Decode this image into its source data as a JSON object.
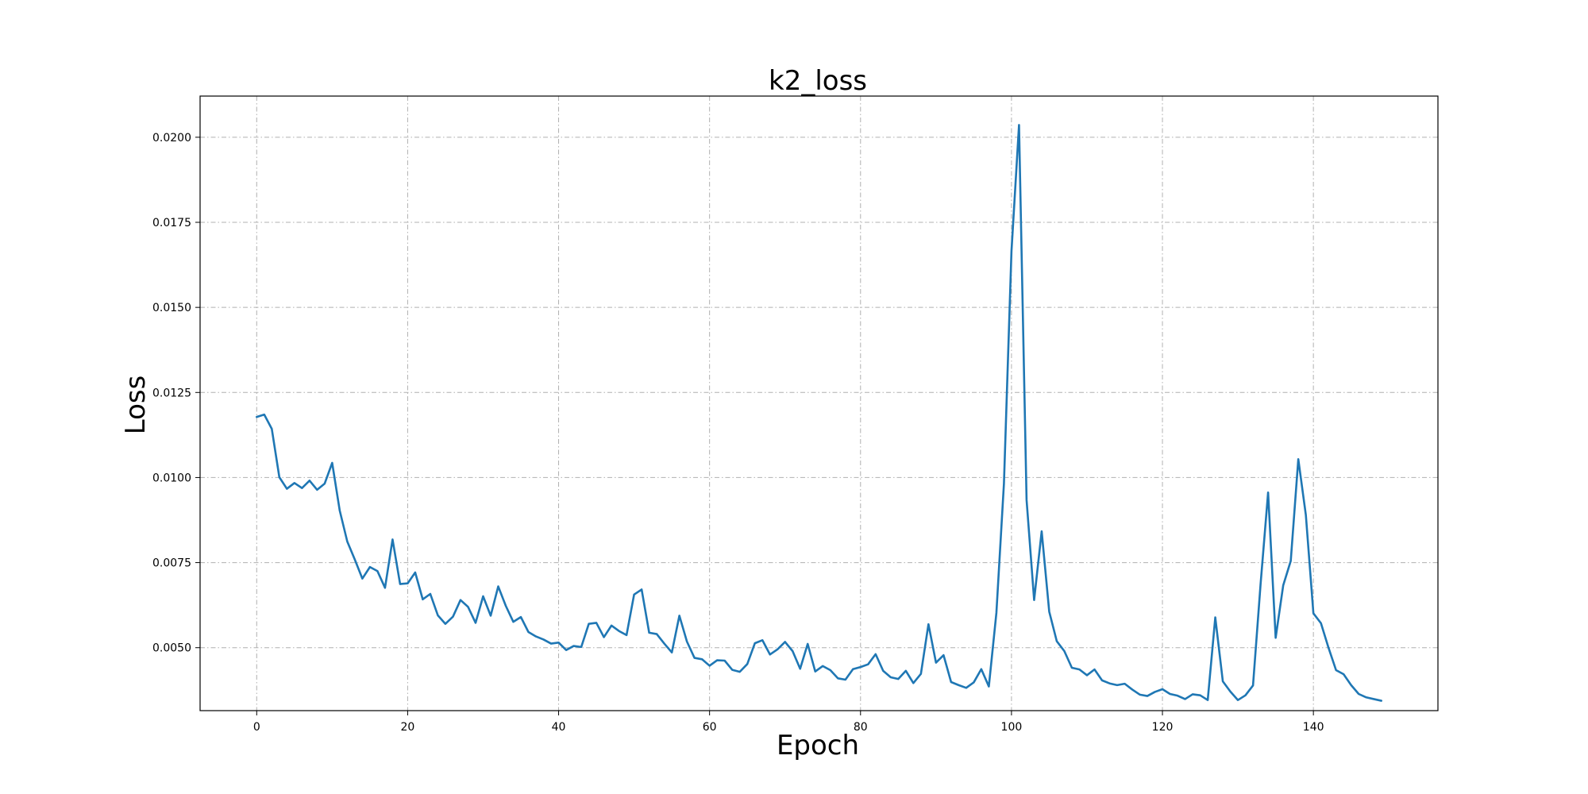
{
  "chart_data": {
    "type": "line",
    "title": "k2_loss",
    "xlabel": "Epoch",
    "ylabel": "Loss",
    "xlim": [
      -7.5,
      156.5
    ],
    "ylim": [
      0.00315,
      0.02121
    ],
    "grid": true,
    "x_ticks": [
      0,
      20,
      40,
      60,
      80,
      100,
      120,
      140
    ],
    "y_ticks": [
      0.005,
      0.0075,
      0.01,
      0.0125,
      0.015,
      0.0175,
      0.02
    ],
    "y_tick_labels": [
      "0.0050",
      "0.0075",
      "0.0100",
      "0.0125",
      "0.0150",
      "0.0175",
      "0.0200"
    ],
    "series": [
      {
        "color": "#1f77b4",
        "values": [
          0.01178,
          0.01185,
          0.01143,
          0.01001,
          0.00967,
          0.00984,
          0.00969,
          0.00991,
          0.00964,
          0.00982,
          0.01043,
          0.00903,
          0.00812,
          0.00759,
          0.00703,
          0.00737,
          0.00725,
          0.00676,
          0.00818,
          0.00687,
          0.00689,
          0.00721,
          0.00642,
          0.00658,
          0.00595,
          0.0057,
          0.00591,
          0.0064,
          0.0062,
          0.00573,
          0.00651,
          0.00594,
          0.0068,
          0.00623,
          0.00576,
          0.0059,
          0.00546,
          0.00533,
          0.00524,
          0.00512,
          0.00515,
          0.00493,
          0.00505,
          0.00502,
          0.0057,
          0.00573,
          0.00531,
          0.00565,
          0.00549,
          0.00537,
          0.00656,
          0.00671,
          0.00544,
          0.0054,
          0.00512,
          0.00486,
          0.00594,
          0.00518,
          0.0047,
          0.00466,
          0.00447,
          0.00463,
          0.00462,
          0.00435,
          0.00429,
          0.00452,
          0.00513,
          0.00522,
          0.0048,
          0.00495,
          0.00517,
          0.0049,
          0.00438,
          0.00511,
          0.0043,
          0.00446,
          0.00434,
          0.0041,
          0.00406,
          0.00437,
          0.00443,
          0.00451,
          0.00481,
          0.00432,
          0.00413,
          0.00408,
          0.00432,
          0.00396,
          0.00423,
          0.00569,
          0.00456,
          0.00478,
          0.00399,
          0.0039,
          0.00382,
          0.00398,
          0.00437,
          0.00386,
          0.00602,
          0.00982,
          0.01666,
          0.02036,
          0.00934,
          0.0064,
          0.00842,
          0.00606,
          0.00519,
          0.0049,
          0.00441,
          0.00436,
          0.00419,
          0.00436,
          0.00404,
          0.00395,
          0.0039,
          0.00394,
          0.00377,
          0.00362,
          0.00358,
          0.0037,
          0.00378,
          0.00364,
          0.00359,
          0.00349,
          0.00363,
          0.0036,
          0.00346,
          0.00589,
          0.00401,
          0.00371,
          0.00346,
          0.0036,
          0.00389,
          0.00686,
          0.00956,
          0.00529,
          0.00683,
          0.00755,
          0.01054,
          0.0089,
          0.00601,
          0.00572,
          0.005,
          0.00434,
          0.00422,
          0.0039,
          0.00364,
          0.00354,
          0.00349,
          0.00344
        ]
      }
    ]
  }
}
